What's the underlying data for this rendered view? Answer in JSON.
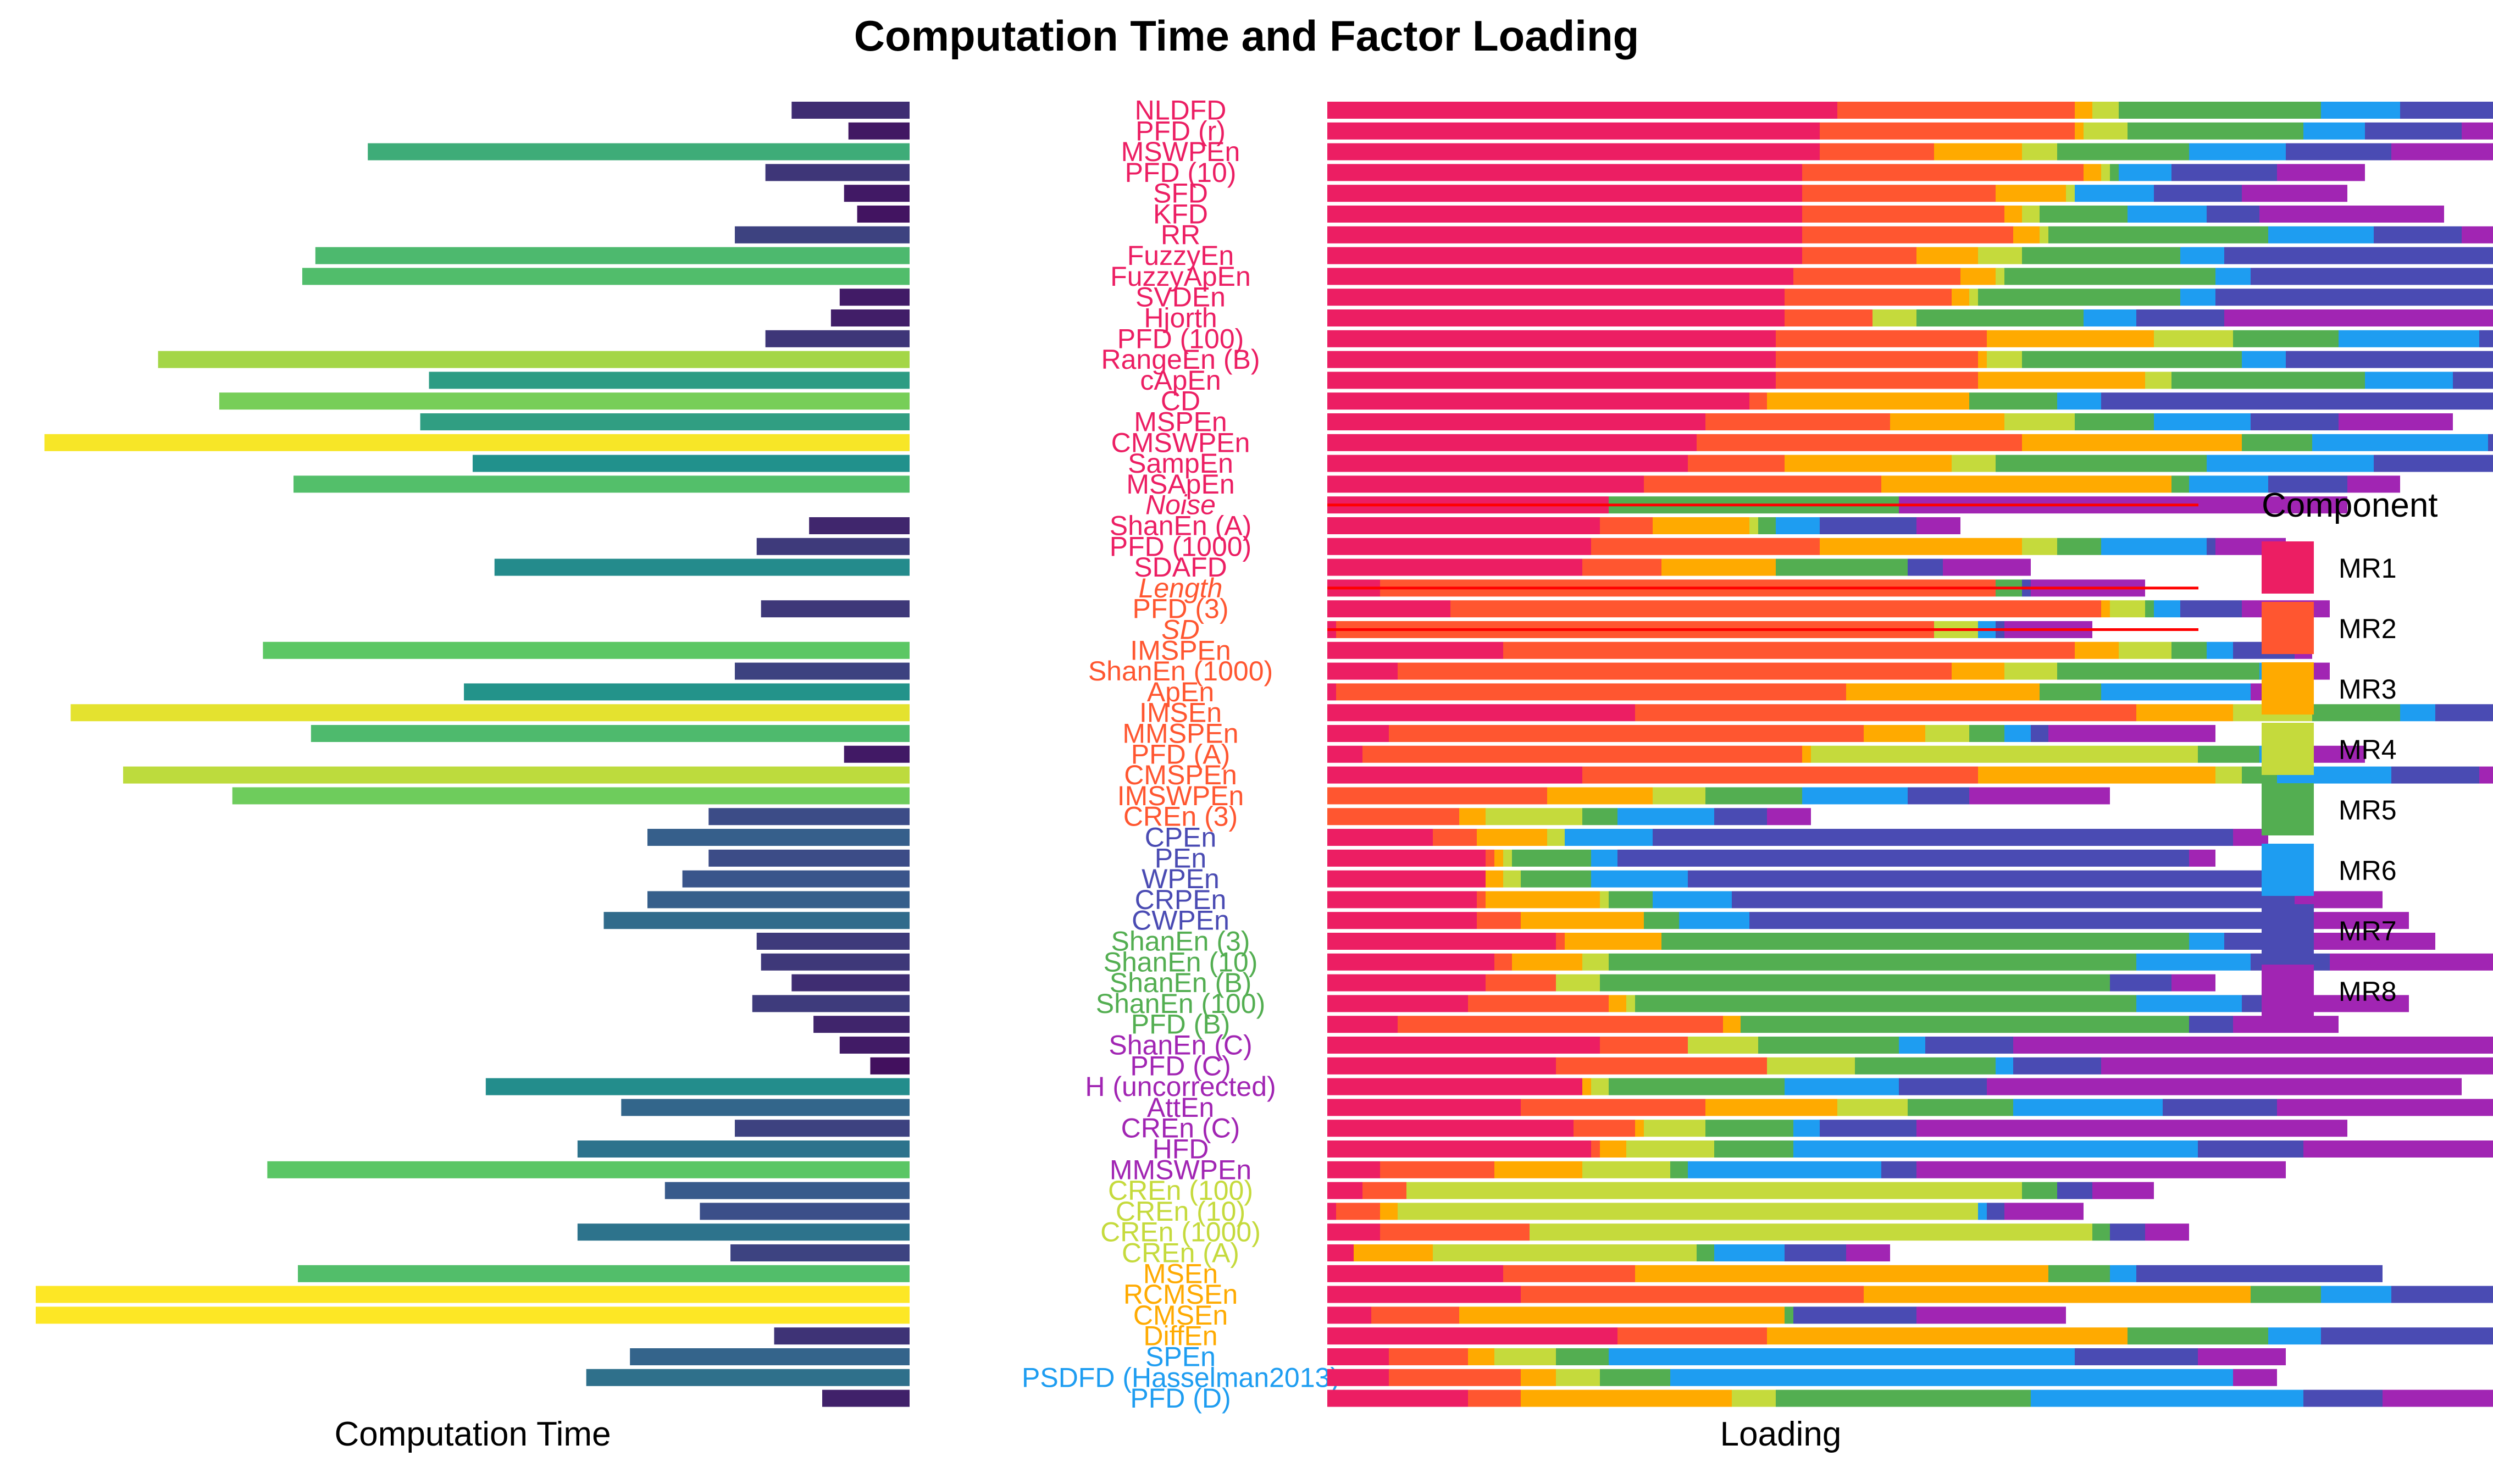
{
  "chart_data": {
    "type": "bar",
    "title": "Computation Time and Factor Loading",
    "left_xlabel": "Computation Time",
    "right_xlabel": "Loading",
    "legend": {
      "title": "Component",
      "placement": "right"
    },
    "components": [
      {
        "name": "MR1",
        "color": "#EC1E63"
      },
      {
        "name": "MR2",
        "color": "#FF5630"
      },
      {
        "name": "MR3",
        "color": "#FFAA00"
      },
      {
        "name": "MR4",
        "color": "#C5DA3C"
      },
      {
        "name": "MR5",
        "color": "#53AE51"
      },
      {
        "name": "MR6",
        "color": "#1E9DF1"
      },
      {
        "name": "MR7",
        "color": "#4A4BB3"
      },
      {
        "name": "MR8",
        "color": "#A125B3"
      }
    ],
    "highlight_line_color": "#FF0000",
    "time_max": 1.0,
    "loading_max": 1.0,
    "measures": [
      {
        "label": "NLDFD",
        "comp": 0,
        "italic": false,
        "time": 0.135,
        "loadings": [
          0.58,
          0.27,
          0.02,
          0.03,
          0.23,
          0.09,
          0.11,
          0.08
        ]
      },
      {
        "label": "PFD (r)",
        "comp": 0,
        "italic": false,
        "time": 0.07,
        "loadings": [
          0.56,
          0.29,
          0.01,
          0.05,
          0.2,
          0.07,
          0.11,
          0.05
        ]
      },
      {
        "label": "MSWPEn",
        "comp": 0,
        "italic": false,
        "time": 0.62,
        "loadings": [
          0.56,
          0.13,
          0.1,
          0.04,
          0.15,
          0.11,
          0.12,
          0.22
        ]
      },
      {
        "label": "PFD (10)",
        "comp": 0,
        "italic": false,
        "time": 0.165,
        "loadings": [
          0.54,
          0.32,
          0.02,
          0.01,
          0.01,
          0.06,
          0.12,
          0.1
        ]
      },
      {
        "label": "SFD",
        "comp": 0,
        "italic": false,
        "time": 0.075,
        "loadings": [
          0.54,
          0.22,
          0.08,
          0.01,
          0.0,
          0.09,
          0.1,
          0.12
        ]
      },
      {
        "label": "KFD",
        "comp": 0,
        "italic": false,
        "time": 0.06,
        "loadings": [
          0.54,
          0.23,
          0.02,
          0.02,
          0.1,
          0.09,
          0.06,
          0.21
        ]
      },
      {
        "label": "RR",
        "comp": 0,
        "italic": false,
        "time": 0.2,
        "loadings": [
          0.54,
          0.24,
          0.03,
          0.01,
          0.25,
          0.12,
          0.1,
          0.07
        ]
      },
      {
        "label": "FuzzyEn",
        "comp": 0,
        "italic": false,
        "time": 0.68,
        "loadings": [
          0.54,
          0.13,
          0.07,
          0.05,
          0.18,
          0.05,
          0.35,
          0.08
        ]
      },
      {
        "label": "FuzzyApEn",
        "comp": 0,
        "italic": false,
        "time": 0.695,
        "loadings": [
          0.53,
          0.19,
          0.04,
          0.01,
          0.24,
          0.04,
          0.3,
          0.12
        ]
      },
      {
        "label": "SVDEn",
        "comp": 0,
        "italic": false,
        "time": 0.08,
        "loadings": [
          0.52,
          0.19,
          0.02,
          0.01,
          0.23,
          0.04,
          0.32,
          0.18
        ]
      },
      {
        "label": "Hjorth",
        "comp": 0,
        "italic": false,
        "time": 0.09,
        "loadings": [
          0.52,
          0.1,
          0.0,
          0.05,
          0.19,
          0.06,
          0.1,
          0.4
        ]
      },
      {
        "label": "PFD (100)",
        "comp": 0,
        "italic": false,
        "time": 0.165,
        "loadings": [
          0.51,
          0.24,
          0.19,
          0.09,
          0.12,
          0.16,
          0.07,
          0.02
        ]
      },
      {
        "label": "RangeEn (B)",
        "comp": 0,
        "italic": false,
        "time": 0.86,
        "loadings": [
          0.51,
          0.23,
          0.01,
          0.04,
          0.25,
          0.05,
          0.33,
          0.0
        ]
      },
      {
        "label": "cApEn",
        "comp": 0,
        "italic": false,
        "time": 0.55,
        "loadings": [
          0.51,
          0.23,
          0.19,
          0.03,
          0.22,
          0.1,
          0.21,
          0.07
        ]
      },
      {
        "label": "CD",
        "comp": 0,
        "italic": false,
        "time": 0.79,
        "loadings": [
          0.48,
          0.02,
          0.23,
          0.0,
          0.1,
          0.05,
          0.5,
          0.1
        ]
      },
      {
        "label": "MSPEn",
        "comp": 0,
        "italic": false,
        "time": 0.56,
        "loadings": [
          0.43,
          0.21,
          0.13,
          0.08,
          0.09,
          0.11,
          0.1,
          0.13
        ]
      },
      {
        "label": "CMSWPEn",
        "comp": 0,
        "italic": false,
        "time": 0.99,
        "loadings": [
          0.42,
          0.37,
          0.25,
          0.0,
          0.08,
          0.2,
          0.14,
          0.15
        ]
      },
      {
        "label": "SampEn",
        "comp": 0,
        "italic": false,
        "time": 0.5,
        "loadings": [
          0.41,
          0.11,
          0.19,
          0.05,
          0.24,
          0.19,
          0.32,
          0.06
        ]
      },
      {
        "label": "MSApEn",
        "comp": 0,
        "italic": false,
        "time": 0.705,
        "loadings": [
          0.36,
          0.27,
          0.33,
          0.0,
          0.02,
          0.09,
          0.09,
          0.06
        ]
      },
      {
        "label": "Noise",
        "comp": 0,
        "italic": true,
        "time": 0.0,
        "loadings": [
          0.32,
          0.0,
          0.0,
          0.0,
          0.33,
          0.0,
          0.0,
          0.51
        ],
        "highlight": true
      },
      {
        "label": "ShanEn (A)",
        "comp": 0,
        "italic": false,
        "time": 0.115,
        "loadings": [
          0.31,
          0.06,
          0.11,
          0.01,
          0.02,
          0.05,
          0.11,
          0.05
        ]
      },
      {
        "label": "PFD (1000)",
        "comp": 0,
        "italic": false,
        "time": 0.175,
        "loadings": [
          0.3,
          0.26,
          0.23,
          0.04,
          0.05,
          0.12,
          0.01,
          0.08
        ]
      },
      {
        "label": "SDAFD",
        "comp": 0,
        "italic": false,
        "time": 0.475,
        "loadings": [
          0.29,
          0.09,
          0.13,
          0.0,
          0.15,
          0.0,
          0.04,
          0.1
        ]
      },
      {
        "label": "Length",
        "comp": 1,
        "italic": true,
        "time": 0.0,
        "loadings": [
          0.06,
          0.7,
          0.0,
          0.0,
          0.03,
          0.0,
          0.01,
          0.13
        ],
        "highlight": true
      },
      {
        "label": "PFD (3)",
        "comp": 1,
        "italic": false,
        "time": 0.17,
        "loadings": [
          0.14,
          0.74,
          0.01,
          0.04,
          0.01,
          0.03,
          0.07,
          0.1
        ]
      },
      {
        "label": "SD",
        "comp": 1,
        "italic": true,
        "time": 0.0,
        "loadings": [
          0.01,
          0.68,
          0.0,
          0.05,
          0.0,
          0.02,
          0.01,
          0.1
        ],
        "highlight": true
      },
      {
        "label": "IMSPEn",
        "comp": 1,
        "italic": false,
        "time": 0.74,
        "loadings": [
          0.2,
          0.65,
          0.05,
          0.06,
          0.04,
          0.03,
          0.07,
          0.02
        ]
      },
      {
        "label": "ShanEn (1000)",
        "comp": 1,
        "italic": false,
        "time": 0.2,
        "loadings": [
          0.08,
          0.63,
          0.06,
          0.06,
          0.23,
          0.04,
          0.0,
          0.04
        ]
      },
      {
        "label": "ApEn",
        "comp": 1,
        "italic": false,
        "time": 0.51,
        "loadings": [
          0.01,
          0.58,
          0.22,
          0.0,
          0.07,
          0.17,
          0.0,
          0.04
        ]
      },
      {
        "label": "IMSEn",
        "comp": 1,
        "italic": false,
        "time": 0.96,
        "loadings": [
          0.35,
          0.57,
          0.11,
          0.09,
          0.1,
          0.04,
          0.07,
          0.02
        ]
      },
      {
        "label": "MMSPEn",
        "comp": 1,
        "italic": false,
        "time": 0.685,
        "loadings": [
          0.07,
          0.54,
          0.07,
          0.05,
          0.04,
          0.03,
          0.02,
          0.19
        ]
      },
      {
        "label": "PFD (A)",
        "comp": 1,
        "italic": false,
        "time": 0.075,
        "loadings": [
          0.04,
          0.5,
          0.01,
          0.44,
          0.07,
          0.01,
          0.0,
          0.11
        ]
      },
      {
        "label": "CMSPEn",
        "comp": 1,
        "italic": false,
        "time": 0.9,
        "loadings": [
          0.29,
          0.45,
          0.27,
          0.03,
          0.04,
          0.13,
          0.1,
          0.07
        ]
      },
      {
        "label": "IMSWPEn",
        "comp": 1,
        "italic": false,
        "time": 0.775,
        "loadings": [
          0.0,
          0.25,
          0.12,
          0.06,
          0.11,
          0.12,
          0.07,
          0.16
        ]
      },
      {
        "label": "CREn (3)",
        "comp": 1,
        "italic": false,
        "time": 0.23,
        "loadings": [
          0.0,
          0.15,
          0.03,
          0.11,
          0.04,
          0.11,
          0.06,
          0.05
        ]
      },
      {
        "label": "CPEn",
        "comp": 6,
        "italic": false,
        "time": 0.3,
        "loadings": [
          0.12,
          0.05,
          0.08,
          0.02,
          0.0,
          0.1,
          0.66,
          0.04
        ]
      },
      {
        "label": "PEn",
        "comp": 6,
        "italic": false,
        "time": 0.23,
        "loadings": [
          0.18,
          0.01,
          0.01,
          0.01,
          0.09,
          0.03,
          0.65,
          0.03
        ]
      },
      {
        "label": "WPEn",
        "comp": 6,
        "italic": false,
        "time": 0.26,
        "loadings": [
          0.18,
          0.0,
          0.02,
          0.02,
          0.08,
          0.11,
          0.68,
          0.03
        ]
      },
      {
        "label": "CRPEn",
        "comp": 6,
        "italic": false,
        "time": 0.3,
        "loadings": [
          0.17,
          0.01,
          0.13,
          0.01,
          0.05,
          0.09,
          0.64,
          0.1
        ]
      },
      {
        "label": "CWPEn",
        "comp": 6,
        "italic": false,
        "time": 0.35,
        "loadings": [
          0.17,
          0.05,
          0.14,
          0.0,
          0.04,
          0.08,
          0.64,
          0.11
        ]
      },
      {
        "label": "ShanEn (3)",
        "comp": 4,
        "italic": false,
        "time": 0.175,
        "loadings": [
          0.26,
          0.01,
          0.11,
          0.0,
          0.6,
          0.04,
          0.1,
          0.14
        ]
      },
      {
        "label": "ShanEn (10)",
        "comp": 4,
        "italic": false,
        "time": 0.17,
        "loadings": [
          0.19,
          0.02,
          0.08,
          0.03,
          0.6,
          0.13,
          0.09,
          0.19
        ]
      },
      {
        "label": "ShanEn (B)",
        "comp": 4,
        "italic": false,
        "time": 0.135,
        "loadings": [
          0.18,
          0.08,
          0.0,
          0.05,
          0.58,
          0.0,
          0.07,
          0.05
        ]
      },
      {
        "label": "ShanEn (100)",
        "comp": 4,
        "italic": false,
        "time": 0.18,
        "loadings": [
          0.16,
          0.16,
          0.02,
          0.01,
          0.57,
          0.12,
          0.07,
          0.12
        ]
      },
      {
        "label": "PFD (B)",
        "comp": 4,
        "italic": false,
        "time": 0.11,
        "loadings": [
          0.08,
          0.37,
          0.02,
          0.0,
          0.51,
          0.0,
          0.05,
          0.12
        ]
      },
      {
        "label": "ShanEn (C)",
        "comp": 7,
        "italic": false,
        "time": 0.08,
        "loadings": [
          0.31,
          0.1,
          0.0,
          0.08,
          0.16,
          0.03,
          0.1,
          0.58
        ]
      },
      {
        "label": "PFD (C)",
        "comp": 7,
        "italic": false,
        "time": 0.045,
        "loadings": [
          0.26,
          0.24,
          0.0,
          0.1,
          0.16,
          0.02,
          0.1,
          0.56
        ]
      },
      {
        "label": "H (uncorrected)",
        "comp": 7,
        "italic": false,
        "time": 0.485,
        "loadings": [
          0.29,
          0.0,
          0.01,
          0.02,
          0.2,
          0.13,
          0.1,
          0.54
        ]
      },
      {
        "label": "AttEn",
        "comp": 7,
        "italic": false,
        "time": 0.33,
        "loadings": [
          0.22,
          0.21,
          0.15,
          0.08,
          0.12,
          0.17,
          0.13,
          0.49
        ]
      },
      {
        "label": "CREn (C)",
        "comp": 7,
        "italic": false,
        "time": 0.2,
        "loadings": [
          0.28,
          0.07,
          0.01,
          0.07,
          0.1,
          0.03,
          0.11,
          0.49
        ]
      },
      {
        "label": "HFD",
        "comp": 7,
        "italic": false,
        "time": 0.38,
        "loadings": [
          0.3,
          0.01,
          0.03,
          0.1,
          0.09,
          0.46,
          0.12,
          0.45
        ]
      },
      {
        "label": "MMSWPEn",
        "comp": 7,
        "italic": false,
        "time": 0.735,
        "loadings": [
          0.06,
          0.13,
          0.1,
          0.1,
          0.02,
          0.22,
          0.04,
          0.42
        ]
      },
      {
        "label": "CREn (100)",
        "comp": 3,
        "italic": false,
        "time": 0.28,
        "loadings": [
          0.04,
          0.05,
          0.0,
          0.7,
          0.04,
          0.0,
          0.04,
          0.07
        ]
      },
      {
        "label": "CREn (10)",
        "comp": 3,
        "italic": false,
        "time": 0.24,
        "loadings": [
          0.01,
          0.05,
          0.02,
          0.66,
          0.0,
          0.01,
          0.02,
          0.09
        ]
      },
      {
        "label": "CREn (1000)",
        "comp": 3,
        "italic": false,
        "time": 0.38,
        "loadings": [
          0.06,
          0.17,
          0.0,
          0.64,
          0.02,
          0.0,
          0.04,
          0.05
        ]
      },
      {
        "label": "CREn (A)",
        "comp": 3,
        "italic": false,
        "time": 0.205,
        "loadings": [
          0.03,
          0.0,
          0.09,
          0.3,
          0.02,
          0.08,
          0.07,
          0.05
        ]
      },
      {
        "label": "MSEn",
        "comp": 2,
        "italic": false,
        "time": 0.7,
        "loadings": [
          0.2,
          0.15,
          0.47,
          0.0,
          0.07,
          0.03,
          0.28,
          0.0
        ]
      },
      {
        "label": "RCMSEn",
        "comp": 2,
        "italic": false,
        "time": 1.0,
        "loadings": [
          0.22,
          0.39,
          0.44,
          0.0,
          0.08,
          0.08,
          0.17,
          0.06
        ]
      },
      {
        "label": "CMSEn",
        "comp": 2,
        "italic": false,
        "time": 1.0,
        "loadings": [
          0.05,
          0.1,
          0.37,
          0.0,
          0.01,
          0.0,
          0.14,
          0.17
        ]
      },
      {
        "label": "DiffEn",
        "comp": 2,
        "italic": false,
        "time": 0.155,
        "loadings": [
          0.33,
          0.17,
          0.41,
          0.0,
          0.16,
          0.06,
          0.2,
          0.12
        ]
      },
      {
        "label": "SPEn",
        "comp": 5,
        "italic": false,
        "time": 0.32,
        "loadings": [
          0.07,
          0.09,
          0.03,
          0.07,
          0.06,
          0.53,
          0.14,
          0.1
        ]
      },
      {
        "label": "PSDFD (Hasselman2013)",
        "comp": 5,
        "italic": false,
        "time": 0.37,
        "loadings": [
          0.07,
          0.15,
          0.04,
          0.05,
          0.08,
          0.64,
          0.0,
          0.05
        ]
      },
      {
        "label": "PFD (D)",
        "comp": 5,
        "italic": false,
        "time": 0.1,
        "loadings": [
          0.16,
          0.06,
          0.24,
          0.05,
          0.29,
          0.31,
          0.09,
          0.15
        ]
      }
    ]
  }
}
